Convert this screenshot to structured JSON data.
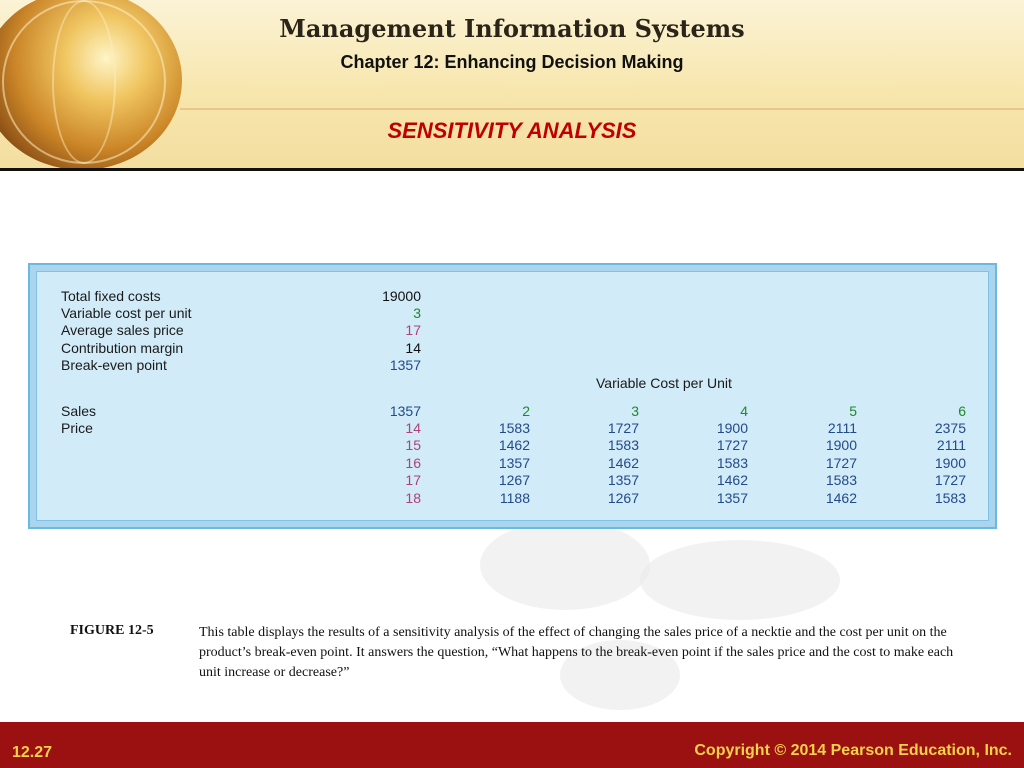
{
  "header": {
    "title": "Management Information Systems",
    "subtitle": "Chapter 12: Enhancing Decision Making",
    "slide_heading": "SENSITIVITY ANALYSIS"
  },
  "table": {
    "inputs": [
      {
        "label": "Total fixed costs",
        "value": "19000",
        "color": "#111111"
      },
      {
        "label": "Variable cost per unit",
        "value": "3",
        "color": "#1b8a2a"
      },
      {
        "label": "Average sales price",
        "value": "17",
        "color": "#b0407e"
      },
      {
        "label": "Contribution margin",
        "value": "14",
        "color": "#111111"
      },
      {
        "label": "Break-even point",
        "value": "1357",
        "color": "#234a8a"
      }
    ],
    "column_group_header": "Variable Cost per Unit",
    "sales_label": "Sales",
    "price_label": "Price",
    "sales_value": "1357",
    "variable_costs": [
      "2",
      "3",
      "4",
      "5",
      "6"
    ],
    "prices": [
      "14",
      "15",
      "16",
      "17",
      "18"
    ],
    "rows": [
      [
        "1583",
        "1727",
        "1900",
        "2111",
        "2375"
      ],
      [
        "1462",
        "1583",
        "1727",
        "1900",
        "2111"
      ],
      [
        "1357",
        "1462",
        "1583",
        "1727",
        "1900"
      ],
      [
        "1267",
        "1357",
        "1462",
        "1583",
        "1727"
      ],
      [
        "1188",
        "1267",
        "1357",
        "1462",
        "1583"
      ]
    ]
  },
  "caption": {
    "label": "FIGURE 12-5",
    "text": "This table displays the results of a sensitivity analysis of the effect of changing the sales price of a necktie and the cost per unit on the product’s break-even point. It answers the question, “What happens to the break-even point if the sales price and the cost to make each unit increase or decrease?”"
  },
  "footer": {
    "slide_number": "12.27",
    "copyright": "Copyright © 2014 Pearson Education, Inc."
  },
  "colors": {
    "heading_red": "#c00000",
    "footer_bg": "#9b1010",
    "footer_text": "#f4d24a",
    "panel_bg": "#d1ebf8",
    "green": "#1b8a2a",
    "pink": "#b0407e",
    "blue": "#234a8a"
  }
}
